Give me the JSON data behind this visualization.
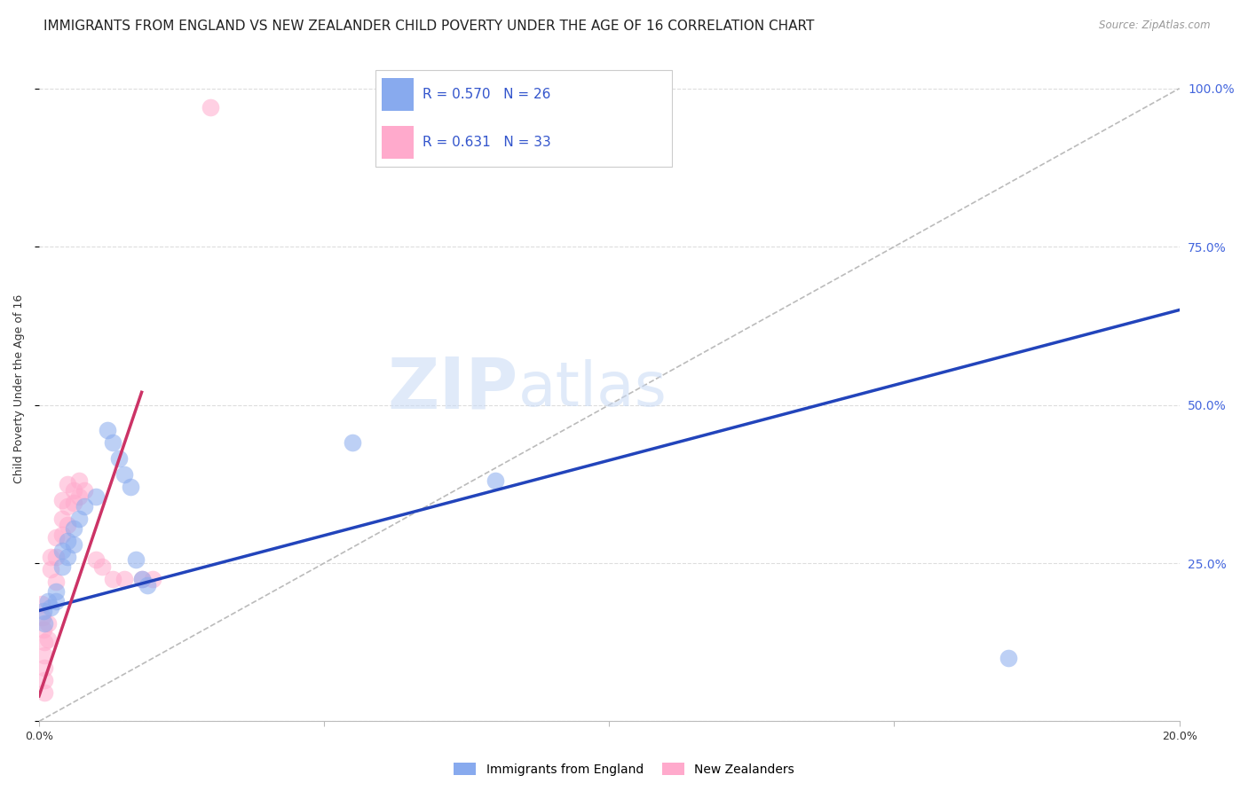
{
  "title": "IMMIGRANTS FROM ENGLAND VS NEW ZEALANDER CHILD POVERTY UNDER THE AGE OF 16 CORRELATION CHART",
  "source": "Source: ZipAtlas.com",
  "ylabel": "Child Poverty Under the Age of 16",
  "xlim": [
    0.0,
    0.2
  ],
  "ylim": [
    0.0,
    1.05
  ],
  "grid_color": "#dddddd",
  "watermark_zip": "ZIP",
  "watermark_atlas": "atlas",
  "legend_label1": "Immigrants from England",
  "legend_label2": "New Zealanders",
  "blue_color": "#88aaee",
  "pink_color": "#ffaacc",
  "blue_line_color": "#2244bb",
  "pink_line_color": "#cc3366",
  "diagonal_color": "#bbbbbb",
  "blue_scatter": [
    [
      0.0008,
      0.175
    ],
    [
      0.001,
      0.155
    ],
    [
      0.0015,
      0.19
    ],
    [
      0.002,
      0.18
    ],
    [
      0.003,
      0.205
    ],
    [
      0.003,
      0.19
    ],
    [
      0.004,
      0.27
    ],
    [
      0.004,
      0.245
    ],
    [
      0.005,
      0.285
    ],
    [
      0.005,
      0.26
    ],
    [
      0.006,
      0.305
    ],
    [
      0.006,
      0.28
    ],
    [
      0.007,
      0.32
    ],
    [
      0.008,
      0.34
    ],
    [
      0.01,
      0.355
    ],
    [
      0.012,
      0.46
    ],
    [
      0.013,
      0.44
    ],
    [
      0.014,
      0.415
    ],
    [
      0.015,
      0.39
    ],
    [
      0.016,
      0.37
    ],
    [
      0.017,
      0.255
    ],
    [
      0.018,
      0.225
    ],
    [
      0.019,
      0.215
    ],
    [
      0.055,
      0.44
    ],
    [
      0.08,
      0.38
    ],
    [
      0.17,
      0.1
    ]
  ],
  "pink_scatter": [
    [
      0.0004,
      0.185
    ],
    [
      0.0006,
      0.165
    ],
    [
      0.0008,
      0.145
    ],
    [
      0.001,
      0.125
    ],
    [
      0.001,
      0.105
    ],
    [
      0.001,
      0.085
    ],
    [
      0.001,
      0.065
    ],
    [
      0.001,
      0.045
    ],
    [
      0.0015,
      0.155
    ],
    [
      0.0015,
      0.13
    ],
    [
      0.002,
      0.26
    ],
    [
      0.002,
      0.24
    ],
    [
      0.003,
      0.29
    ],
    [
      0.003,
      0.26
    ],
    [
      0.003,
      0.22
    ],
    [
      0.004,
      0.35
    ],
    [
      0.004,
      0.32
    ],
    [
      0.004,
      0.295
    ],
    [
      0.005,
      0.375
    ],
    [
      0.005,
      0.34
    ],
    [
      0.005,
      0.31
    ],
    [
      0.006,
      0.365
    ],
    [
      0.006,
      0.345
    ],
    [
      0.007,
      0.38
    ],
    [
      0.007,
      0.355
    ],
    [
      0.008,
      0.365
    ],
    [
      0.01,
      0.255
    ],
    [
      0.011,
      0.245
    ],
    [
      0.013,
      0.225
    ],
    [
      0.015,
      0.225
    ],
    [
      0.018,
      0.225
    ],
    [
      0.02,
      0.225
    ],
    [
      0.03,
      0.97
    ]
  ],
  "title_fontsize": 11,
  "axis_fontsize": 9,
  "tick_fontsize": 9,
  "blue_line_x_start": 0.0,
  "blue_line_x_end": 0.2,
  "pink_line_x_start": 0.0,
  "pink_line_x_end": 0.018
}
